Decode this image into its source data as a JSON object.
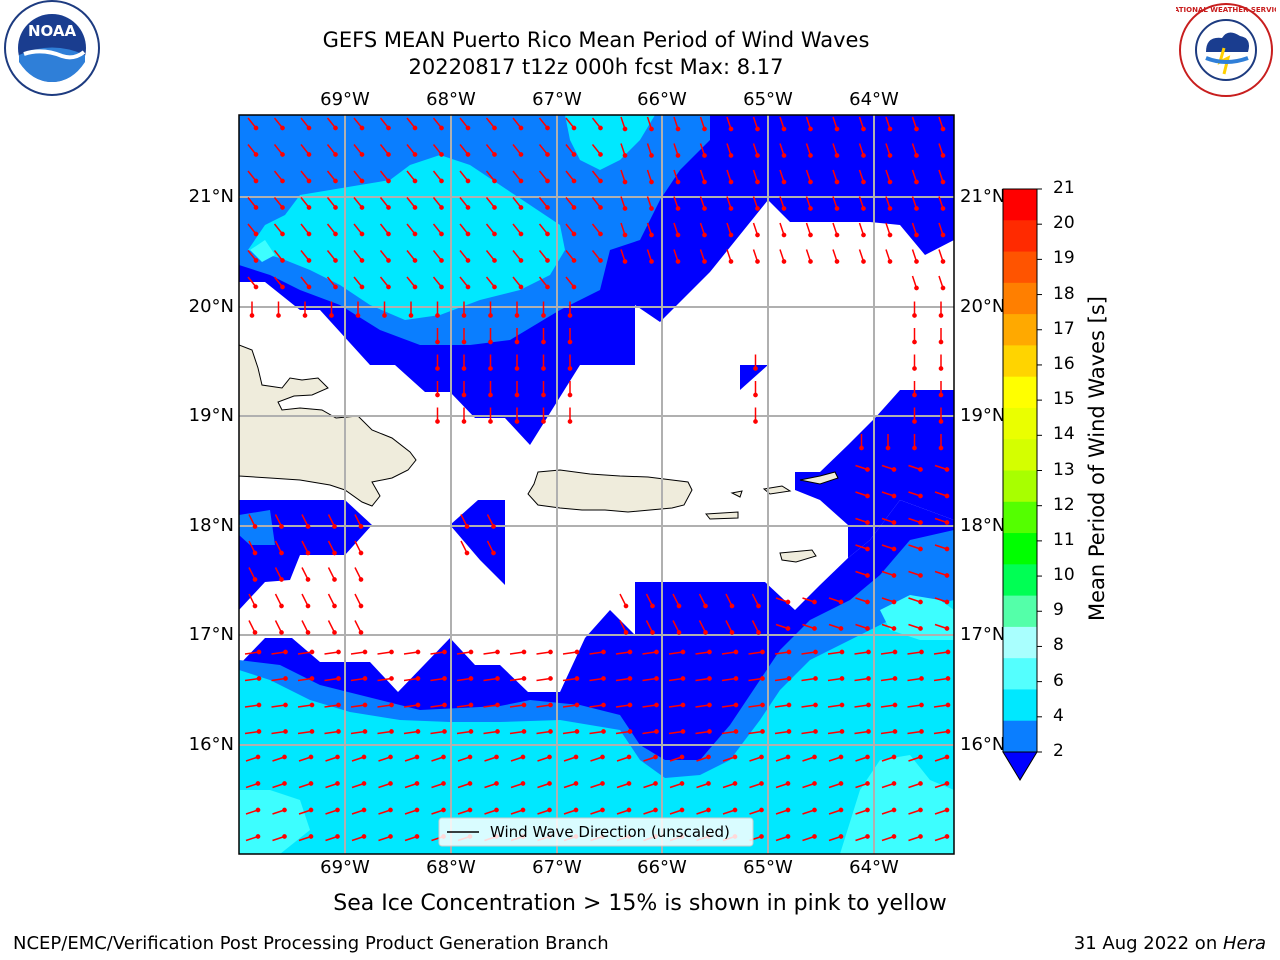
{
  "header": {
    "title_line1": "GEFS MEAN Puerto Rico Mean Period of Wind Waves",
    "title_line2": "20220817 t12z 000h fcst   Max: 8.17"
  },
  "logos": {
    "left": {
      "name": "noaa-logo",
      "text": "NOAA"
    },
    "right": {
      "name": "nws-logo",
      "text": "NATIONAL WEATHER SERVICE"
    }
  },
  "map": {
    "lon_labels": [
      "69°W",
      "68°W",
      "67°W",
      "66°W",
      "65°W",
      "64°W"
    ],
    "lat_labels": [
      "21°N",
      "20°N",
      "19°N",
      "18°N",
      "17°N",
      "16°N"
    ],
    "legend_label": "Wind Wave Direction (unscaled)",
    "colors": {
      "water_dark": "#0000ff",
      "water_mid": "#0a7eff",
      "water_light": "#00e8ff",
      "water_pale": "#3dfeff",
      "land": "#efecdc",
      "arrow": "#ff0000",
      "grid": "#b0b0b0"
    }
  },
  "colorbar": {
    "title": "Mean Period of Wind Waves [s]",
    "labels": [
      "21",
      "20",
      "19",
      "18",
      "17",
      "16",
      "15",
      "14",
      "13",
      "12",
      "11",
      "10",
      "9",
      "8",
      "6",
      "4",
      "2"
    ],
    "colors": [
      "#ff0000",
      "#ff2a00",
      "#ff5400",
      "#ff7f00",
      "#ffa900",
      "#ffd400",
      "#ffff00",
      "#eaff00",
      "#d4ff00",
      "#a8ff00",
      "#54ff00",
      "#00ff00",
      "#00ff54",
      "#54ffa9",
      "#a9fffe",
      "#54fffe",
      "#00e8ff",
      "#0a7eff"
    ]
  },
  "subtitle": "Sea Ice Concentration > 15% is shown in pink to yellow",
  "footer": {
    "left": "NCEP/EMC/Verification Post Processing Product Generation Branch",
    "right_date": "31 Aug 2022 on ",
    "right_host": "Hera"
  }
}
